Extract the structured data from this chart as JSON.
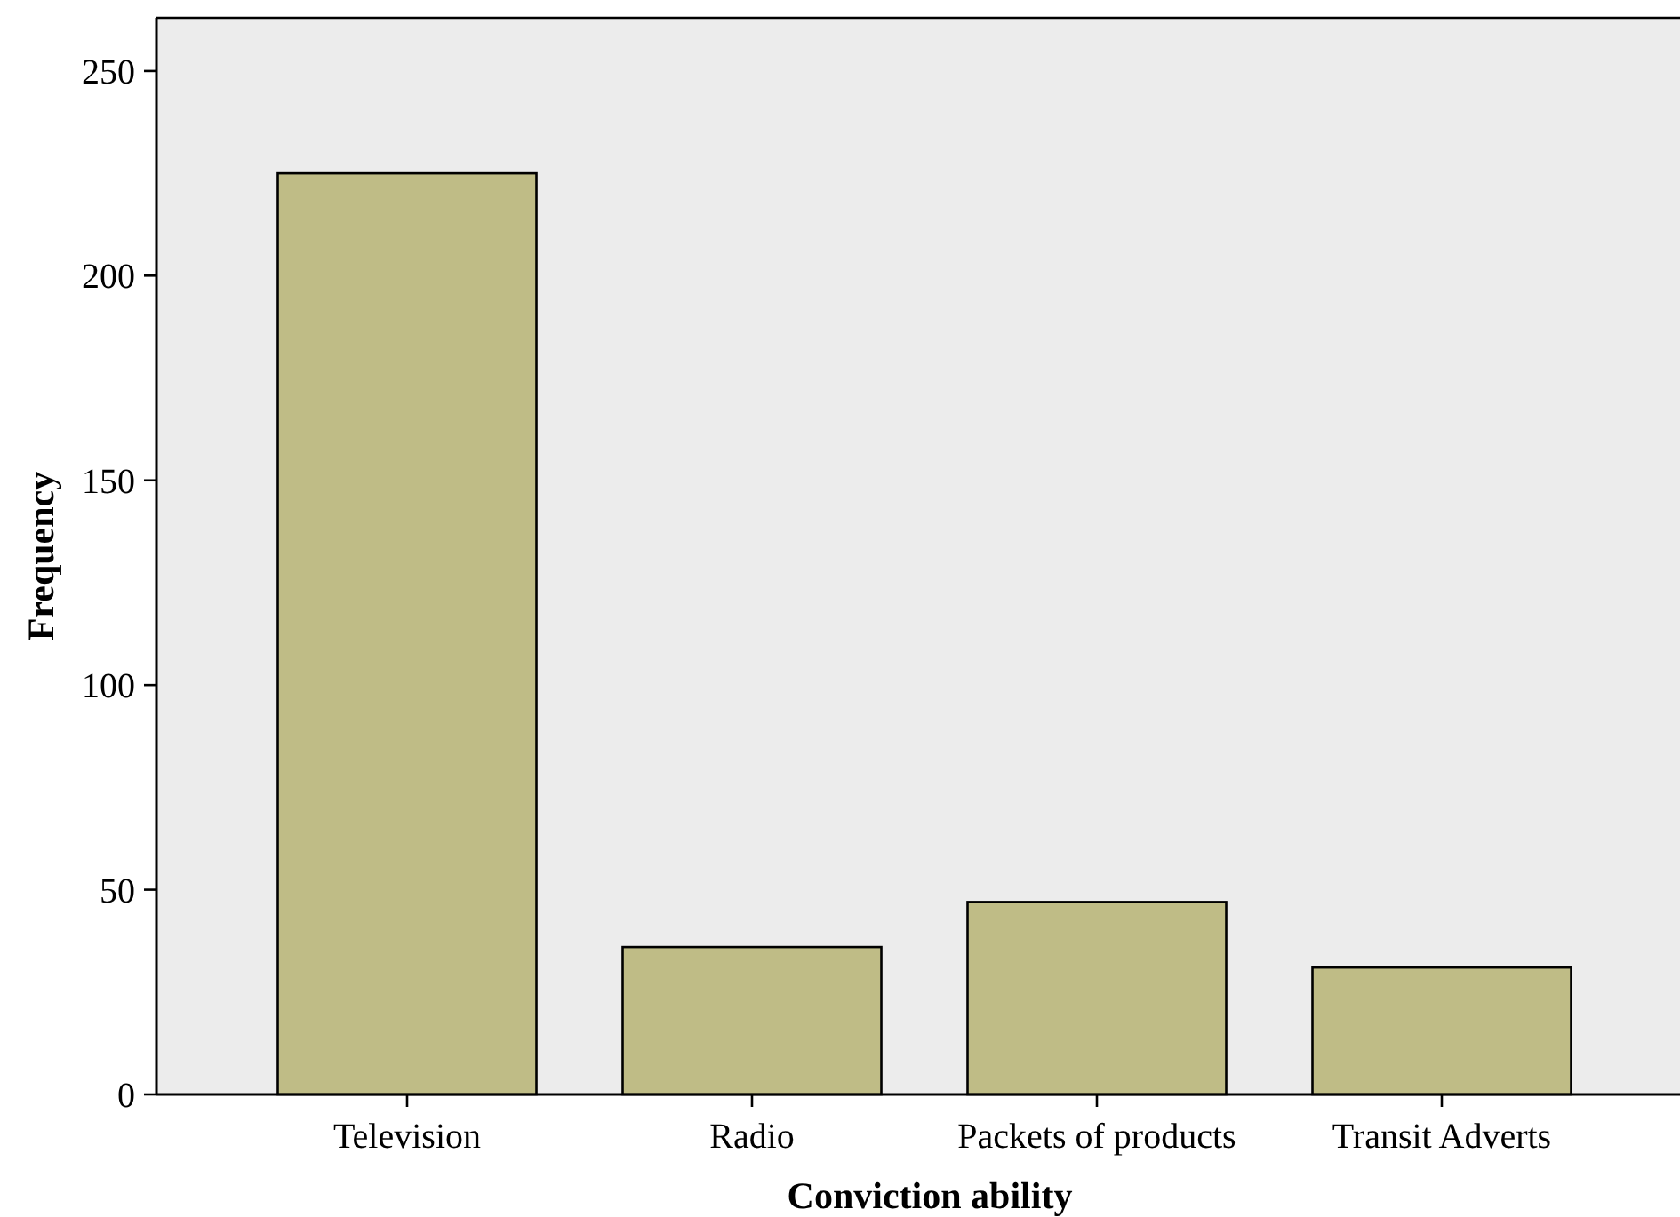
{
  "chart_data": {
    "type": "bar",
    "xlabel": "Conviction ability",
    "ylabel": "Frequency",
    "categories": [
      "Television",
      "Radio",
      "Packets of products",
      "Transit Adverts"
    ],
    "values": [
      225,
      36,
      47,
      31
    ],
    "color": "#bfbc86",
    "ylim": [
      0,
      263
    ],
    "yticks": [
      0,
      50,
      100,
      150,
      200,
      250
    ],
    "grid": false
  }
}
